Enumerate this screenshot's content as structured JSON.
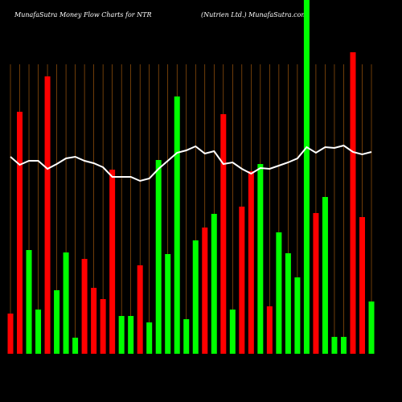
{
  "chart_data": {
    "type": "bar",
    "title": "MunafaSutra  Money Flow  Charts for NTR",
    "subtitle": "(Nutrien  Ltd.) MunafaSutra.com",
    "background": "#000000",
    "grid_color": "#b8650f",
    "ylim": [
      0,
      440
    ],
    "series": [
      {
        "type": "bar",
        "values": [
          50,
          301,
          129,
          55,
          345,
          79,
          126,
          20,
          118,
          82,
          68,
          229,
          47,
          47,
          110,
          39,
          241,
          124,
          320,
          43,
          141,
          157,
          174,
          298,
          55,
          183,
          227,
          236,
          59,
          151,
          125,
          95,
          440,
          175,
          195,
          21,
          21,
          375,
          170,
          65
        ],
        "colors": [
          "#ff0000",
          "#ff0000",
          "#00ff00",
          "#00ff00",
          "#ff0000",
          "#00ff00",
          "#00ff00",
          "#00ff00",
          "#ff0000",
          "#ff0000",
          "#ff0000",
          "#ff0000",
          "#00ff00",
          "#00ff00",
          "#ff0000",
          "#00ff00",
          "#00ff00",
          "#00ff00",
          "#00ff00",
          "#00ff00",
          "#00ff00",
          "#ff0000",
          "#00ff00",
          "#ff0000",
          "#00ff00",
          "#ff0000",
          "#ff0000",
          "#00ff00",
          "#ff0000",
          "#00ff00",
          "#00ff00",
          "#00ff00",
          "#00ff00",
          "#ff0000",
          "#00ff00",
          "#00ff00",
          "#00ff00",
          "#ff0000",
          "#ff0000",
          "#00ff00"
        ]
      },
      {
        "type": "line",
        "color": "#ffffff",
        "values": [
          245,
          235,
          240,
          240,
          230,
          236,
          243,
          245,
          240,
          237,
          232,
          220,
          220,
          220,
          215,
          218,
          230,
          240,
          250,
          253,
          258,
          249,
          252,
          236,
          238,
          230,
          224,
          231,
          230,
          234,
          238,
          243,
          257,
          250,
          257,
          256,
          259,
          251,
          248,
          251
        ]
      }
    ]
  }
}
